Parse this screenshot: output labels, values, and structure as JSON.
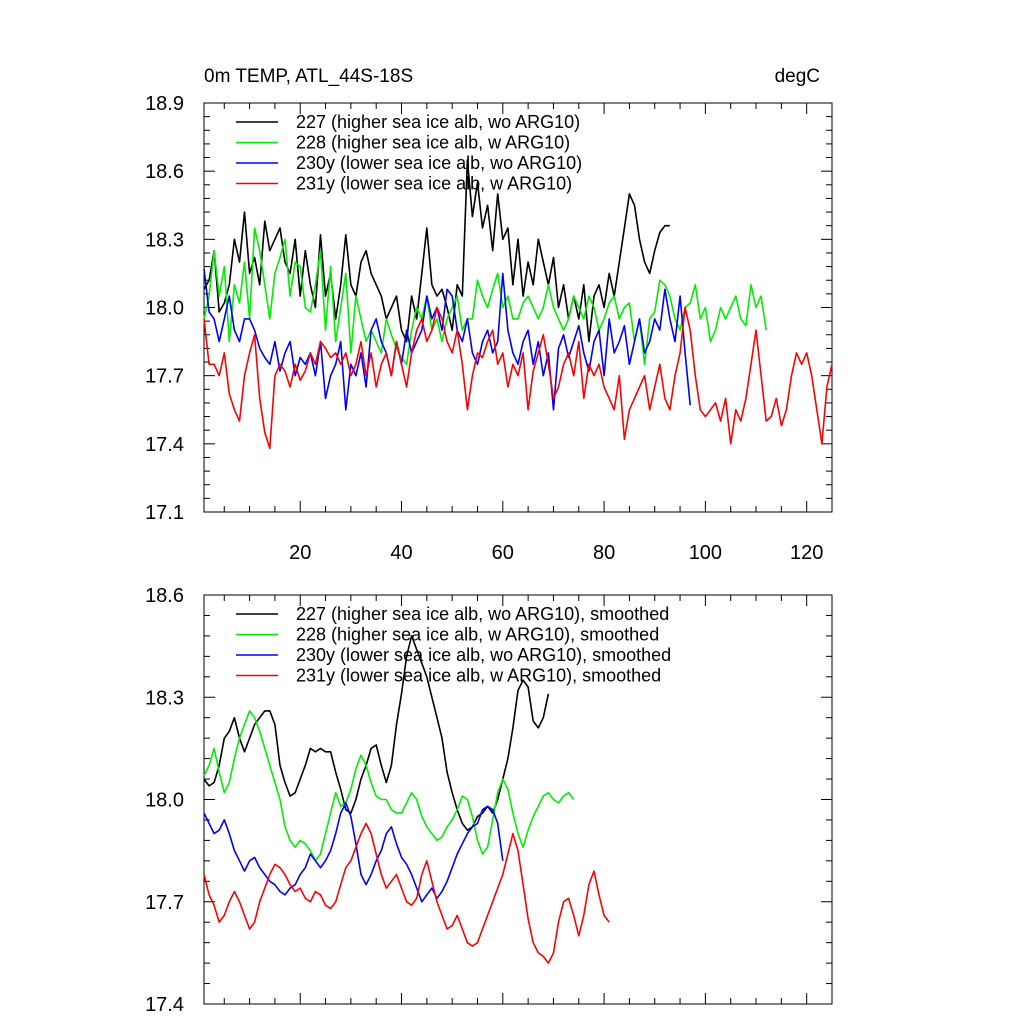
{
  "chart_data": [
    {
      "type": "line",
      "title": "0m TEMP, ATL_44S-18S",
      "units": "degC",
      "xlim": [
        1,
        125
      ],
      "ylim": [
        17.1,
        18.9
      ],
      "xticks": [
        20,
        40,
        60,
        80,
        100,
        120
      ],
      "xticklabels": [
        "20",
        "40",
        "60",
        "80",
        "100",
        "120"
      ],
      "yticks": [
        17.1,
        17.4,
        17.7,
        18.0,
        18.3,
        18.6,
        18.9
      ],
      "yticklabels": [
        "17.1",
        "17.4",
        "17.7",
        "18.0",
        "18.3",
        "18.6",
        "18.9"
      ],
      "legend_position": "top-left",
      "series": [
        {
          "name": "227 (higher sea ice alb, wo ARG10)",
          "color": "#000000",
          "values": [
            18.08,
            18.12,
            18.25,
            17.98,
            18.02,
            18.1,
            18.3,
            18.2,
            18.42,
            18.15,
            18.22,
            18.1,
            18.38,
            18.25,
            18.3,
            18.35,
            18.2,
            18.15,
            18.3,
            18.05,
            18.25,
            18.1,
            18.0,
            18.32,
            18.05,
            18.15,
            17.95,
            18.1,
            18.32,
            18.1,
            18.05,
            18.2,
            18.25,
            18.15,
            18.1,
            18.05,
            17.95,
            18.0,
            18.05,
            17.9,
            17.85,
            18.05,
            17.95,
            18.15,
            18.35,
            18.1,
            18.05,
            18.08,
            18.0,
            17.9,
            18.1,
            18.05,
            18.65,
            18.4,
            18.55,
            18.35,
            18.45,
            18.25,
            18.5,
            18.3,
            18.35,
            18.1,
            18.3,
            18.05,
            18.2,
            18.1,
            18.3,
            18.2,
            18.1,
            18.22,
            18.0,
            18.1,
            17.95,
            18.05,
            17.95,
            18.1,
            17.85,
            18.05,
            18.1,
            18.0,
            18.15,
            18.05,
            18.2,
            18.35,
            18.5,
            18.45,
            18.3,
            18.2,
            18.15,
            18.25,
            18.33,
            18.36,
            18.36
          ]
        },
        {
          "name": "228 (higher sea ice alb, w ARG10)",
          "color": "#00ee00",
          "values": [
            17.95,
            18.05,
            18.25,
            18.05,
            18.18,
            17.85,
            18.1,
            18.02,
            18.2,
            17.95,
            18.35,
            18.25,
            18.1,
            17.95,
            18.15,
            18.22,
            18.3,
            18.05,
            18.2,
            18.18,
            18.0,
            17.98,
            18.1,
            18.25,
            17.9,
            18.18,
            17.85,
            18.0,
            18.15,
            17.8,
            18.05,
            17.95,
            17.85,
            17.9,
            17.85,
            17.8,
            17.95,
            17.88,
            17.82,
            17.78,
            17.75,
            17.9,
            18.0,
            17.95,
            18.05,
            17.9,
            17.95,
            17.85,
            17.95,
            18.0,
            18.05,
            17.9,
            17.95,
            17.95,
            18.12,
            18.05,
            18.0,
            18.08,
            18.15,
            18.0,
            18.05,
            17.95,
            17.95,
            18.02,
            18.05,
            18.0,
            17.95,
            18.0,
            18.1,
            18.0,
            17.95,
            17.9,
            17.95,
            18.05,
            18.0,
            17.95,
            18.05,
            18.0,
            17.9,
            17.95,
            18.02,
            18.05,
            17.95,
            18.0,
            18.02,
            17.85,
            17.95,
            17.75,
            17.95,
            17.98,
            18.12,
            18.1,
            18.05,
            17.95,
            17.9,
            18.0,
            18.02,
            18.1,
            17.95,
            18.0,
            17.85,
            17.9,
            18.0,
            17.95,
            18.0,
            18.05,
            17.95,
            17.92,
            18.1,
            18.0,
            18.05,
            17.9
          ]
        },
        {
          "name": "230y (lower sea ice alb, wo ARG10)",
          "color": "#0000ff",
          "values": [
            18.17,
            17.98,
            17.95,
            17.85,
            17.95,
            18.05,
            17.9,
            17.85,
            17.95,
            17.95,
            17.9,
            17.82,
            17.78,
            17.75,
            17.85,
            17.72,
            17.8,
            17.85,
            17.7,
            17.78,
            17.75,
            17.8,
            17.7,
            17.85,
            17.6,
            17.7,
            17.75,
            17.85,
            17.55,
            17.75,
            17.7,
            17.8,
            17.65,
            17.9,
            17.95,
            17.85,
            17.8,
            17.7,
            17.85,
            17.75,
            17.9,
            17.8,
            17.85,
            17.9,
            18.05,
            17.95,
            18.0,
            17.9,
            18.08,
            18.05,
            17.9,
            17.85,
            17.95,
            17.8,
            17.75,
            17.85,
            17.9,
            17.8,
            17.85,
            18.15,
            17.9,
            17.8,
            17.75,
            17.85,
            17.9,
            17.75,
            17.85,
            17.7,
            17.8,
            17.55,
            17.82,
            17.88,
            17.78,
            17.85,
            17.92,
            17.8,
            17.72,
            17.85,
            17.9,
            17.7,
            17.95,
            17.8,
            17.85,
            17.92,
            17.75,
            17.85,
            17.95,
            17.8,
            17.85,
            17.95,
            17.9,
            18.08,
            17.95,
            17.85,
            18.05,
            17.8,
            17.57
          ]
        },
        {
          "name": "231y (lower sea ice alb, w ARG10)",
          "color": "#ff0000",
          "values": [
            17.95,
            17.75,
            17.75,
            17.7,
            17.8,
            17.62,
            17.55,
            17.5,
            17.7,
            17.8,
            17.88,
            17.6,
            17.45,
            17.38,
            17.7,
            17.75,
            17.72,
            17.65,
            17.75,
            17.68,
            17.72,
            17.8,
            17.75,
            17.85,
            17.82,
            17.78,
            17.8,
            17.75,
            17.8,
            17.7,
            17.75,
            17.85,
            17.7,
            17.8,
            17.65,
            17.75,
            17.8,
            17.7,
            17.85,
            17.75,
            17.65,
            17.8,
            17.9,
            17.95,
            17.85,
            17.9,
            18.0,
            17.95,
            17.85,
            17.8,
            17.9,
            17.75,
            17.55,
            17.7,
            17.8,
            17.78,
            17.85,
            17.9,
            17.75,
            17.8,
            17.65,
            17.75,
            17.7,
            17.8,
            17.55,
            17.72,
            17.8,
            17.88,
            17.75,
            17.6,
            17.65,
            17.75,
            17.8,
            17.7,
            17.85,
            17.6,
            17.75,
            17.7,
            17.75,
            17.65,
            17.6,
            17.55,
            17.7,
            17.42,
            17.55,
            17.6,
            17.65,
            17.7,
            17.55,
            17.65,
            17.75,
            17.6,
            17.55,
            17.7,
            17.8,
            18.0,
            17.9,
            17.7,
            17.55,
            17.52,
            17.55,
            17.58,
            17.5,
            17.6,
            17.4,
            17.55,
            17.5,
            17.6,
            17.75,
            17.9,
            17.7,
            17.5,
            17.52,
            17.6,
            17.48,
            17.55,
            17.7,
            17.8,
            17.75,
            17.8,
            17.7,
            17.55,
            17.4,
            17.65,
            17.75
          ]
        }
      ]
    },
    {
      "type": "line",
      "title": "",
      "xlim": [
        1,
        125
      ],
      "ylim": [
        17.4,
        18.6
      ],
      "xticks": [
        20,
        40,
        60,
        80,
        100,
        120
      ],
      "yticks": [
        17.4,
        17.7,
        18.0,
        18.3,
        18.6
      ],
      "yticklabels": [
        "17.4",
        "17.7",
        "18.0",
        "18.3",
        "18.6"
      ],
      "legend_position": "top-left",
      "series": [
        {
          "name": "227 (higher sea ice alb, wo ARG10), smoothed",
          "color": "#000000",
          "values": [
            18.06,
            18.04,
            18.05,
            18.1,
            18.18,
            18.2,
            18.24,
            18.18,
            18.14,
            18.18,
            18.22,
            18.24,
            18.26,
            18.26,
            18.22,
            18.1,
            18.05,
            18.01,
            18.02,
            18.06,
            18.1,
            18.15,
            18.14,
            18.15,
            18.14,
            18.14,
            18.08,
            18.03,
            17.97,
            17.96,
            18.0,
            18.06,
            18.1,
            18.15,
            18.16,
            18.1,
            18.05,
            18.1,
            18.22,
            18.31,
            18.42,
            18.48,
            18.44,
            18.4,
            18.36,
            18.3,
            18.24,
            18.18,
            18.08,
            18.02,
            17.97,
            17.93,
            17.91,
            17.92,
            17.95,
            17.96,
            17.98,
            17.96,
            18.0,
            18.06,
            18.12,
            18.21,
            18.32,
            18.35,
            18.33,
            18.23,
            18.21,
            18.24,
            18.31
          ]
        },
        {
          "name": "228 (higher sea ice alb, w ARG10), smoothed",
          "color": "#00ee00",
          "values": [
            18.07,
            18.1,
            18.15,
            18.08,
            18.02,
            18.05,
            18.12,
            18.18,
            18.22,
            18.26,
            18.24,
            18.2,
            18.15,
            18.1,
            18.05,
            18.0,
            17.92,
            17.88,
            17.86,
            17.88,
            17.87,
            17.85,
            17.82,
            17.84,
            17.9,
            17.96,
            18.02,
            17.98,
            17.99,
            18.03,
            18.09,
            18.13,
            18.1,
            18.05,
            18.01,
            18.0,
            18.0,
            17.97,
            17.96,
            17.96,
            17.99,
            18.02,
            18.0,
            17.95,
            17.92,
            17.9,
            17.88,
            17.89,
            17.92,
            17.94,
            17.97,
            18.01,
            18.0,
            17.95,
            17.88,
            17.84,
            17.86,
            17.94,
            18.02,
            18.06,
            18.03,
            17.96,
            17.9,
            17.86,
            17.91,
            17.95,
            17.98,
            18.01,
            18.02,
            18.0,
            17.99,
            18.01,
            18.02,
            18.0
          ]
        },
        {
          "name": "230y (lower sea ice alb, wo ARG10), smoothed",
          "color": "#0000ff",
          "values": [
            17.96,
            17.93,
            17.9,
            17.91,
            17.94,
            17.9,
            17.85,
            17.82,
            17.79,
            17.82,
            17.83,
            17.8,
            17.78,
            17.76,
            17.75,
            17.73,
            17.72,
            17.74,
            17.75,
            17.78,
            17.8,
            17.84,
            17.82,
            17.8,
            17.82,
            17.85,
            17.9,
            17.96,
            17.99,
            17.95,
            17.87,
            17.78,
            17.75,
            17.78,
            17.82,
            17.85,
            17.9,
            17.92,
            17.87,
            17.83,
            17.81,
            17.78,
            17.74,
            17.7,
            17.72,
            17.74,
            17.71,
            17.73,
            17.76,
            17.8,
            17.84,
            17.87,
            17.9,
            17.92,
            17.93,
            17.97,
            17.98,
            17.97,
            17.93,
            17.82
          ]
        },
        {
          "name": "231y (lower sea ice alb, w ARG10), smoothed",
          "color": "#ff0000",
          "values": [
            17.78,
            17.72,
            17.69,
            17.64,
            17.66,
            17.7,
            17.73,
            17.7,
            17.66,
            17.62,
            17.64,
            17.7,
            17.74,
            17.78,
            17.81,
            17.8,
            17.78,
            17.75,
            17.73,
            17.74,
            17.71,
            17.7,
            17.73,
            17.72,
            17.69,
            17.68,
            17.7,
            17.75,
            17.8,
            17.82,
            17.86,
            17.9,
            17.93,
            17.9,
            17.84,
            17.78,
            17.74,
            17.76,
            17.78,
            17.74,
            17.7,
            17.69,
            17.71,
            17.78,
            17.82,
            17.76,
            17.7,
            17.66,
            17.62,
            17.63,
            17.66,
            17.62,
            17.58,
            17.57,
            17.58,
            17.62,
            17.66,
            17.7,
            17.74,
            17.78,
            17.84,
            17.9,
            17.85,
            17.75,
            17.65,
            17.58,
            17.55,
            17.54,
            17.52,
            17.55,
            17.64,
            17.7,
            17.71,
            17.66,
            17.6,
            17.66,
            17.75,
            17.79,
            17.72,
            17.66,
            17.64
          ]
        }
      ]
    }
  ]
}
